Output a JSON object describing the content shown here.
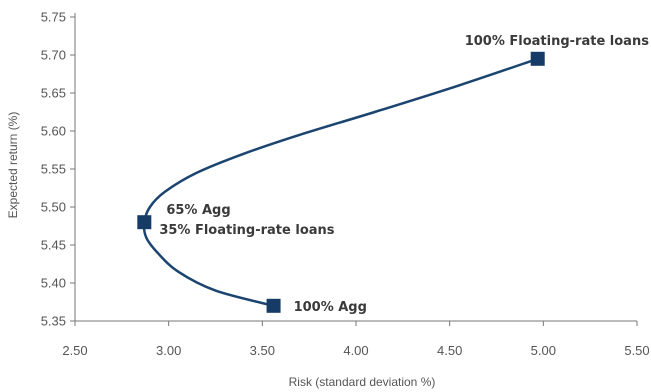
{
  "chart_data": {
    "type": "line",
    "title": "",
    "xlabel": "Risk (standard deviation %)",
    "ylabel": "Expected return (%)",
    "xlim": [
      2.5,
      5.5
    ],
    "ylim": [
      5.35,
      5.75
    ],
    "x_ticks": [
      "2.50",
      "3.00",
      "3.50",
      "4.00",
      "4.50",
      "5.00",
      "5.50"
    ],
    "y_ticks": [
      "5.35",
      "5.40",
      "5.45",
      "5.50",
      "5.55",
      "5.60",
      "5.65",
      "5.70",
      "5.75"
    ],
    "grid": false,
    "series": [
      {
        "x": [
          3.56,
          3.25,
          3.05,
          2.94,
          2.88,
          2.87,
          2.9,
          2.98,
          3.15,
          3.4,
          3.7,
          4.1,
          4.55,
          4.97
        ],
        "y": [
          5.37,
          5.39,
          5.415,
          5.44,
          5.46,
          5.48,
          5.5,
          5.52,
          5.545,
          5.57,
          5.595,
          5.625,
          5.66,
          5.695
        ]
      }
    ],
    "points": [
      {
        "x": 3.56,
        "y": 5.37,
        "labels": [
          "100% Agg"
        ]
      },
      {
        "x": 2.87,
        "y": 5.48,
        "labels": [
          "65% Agg",
          "35% Floating-rate loans"
        ]
      },
      {
        "x": 4.97,
        "y": 5.695,
        "labels": [
          "100% Floating-rate loans"
        ]
      }
    ],
    "colors": {
      "line": "#1b4470",
      "marker": "#163b66",
      "text": "#3a3a3a",
      "axis": "#777777"
    }
  }
}
